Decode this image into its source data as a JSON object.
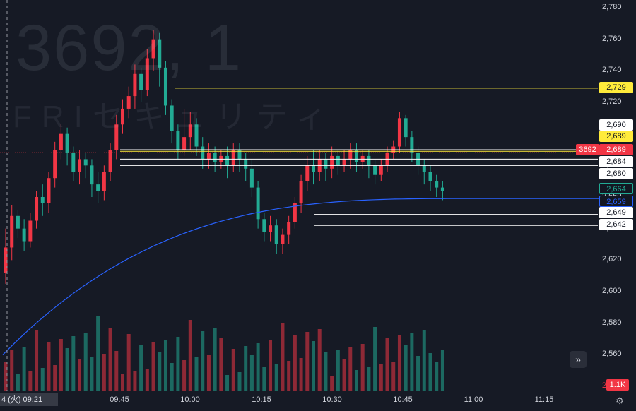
{
  "symbol_code": "3692",
  "symbol_suffix": "1",
  "company_name": "FRIセキュリティ",
  "colors": {
    "background": "#161a25",
    "up": "#f23645",
    "down": "#22ab94",
    "vwap": "#2962ff",
    "level_yellow": "#ffeb3b",
    "level_white": "#ffffff",
    "last_price": "#f23645",
    "grid": "#1f2330"
  },
  "price_axis": {
    "ticks": [
      "2,780",
      "2,760",
      "2,740",
      "2,720",
      "2,700",
      "2,680",
      "2,660",
      "2,640",
      "2,620",
      "2,600",
      "2,580",
      "2,560",
      "2,540"
    ],
    "tick_values": [
      2780,
      2760,
      2740,
      2720,
      2700,
      2680,
      2660,
      2640,
      2620,
      2600,
      2580,
      2560,
      2540
    ]
  },
  "price_labels": [
    {
      "text": "2,729",
      "value": 2729,
      "style": "yellow"
    },
    {
      "text": "2,690",
      "value": 2690,
      "style": "plain"
    },
    {
      "text": "2,689",
      "value": 2689,
      "style": "yellow"
    },
    {
      "text": "2,689",
      "value": 2689,
      "style": "red"
    },
    {
      "text": "2,684",
      "value": 2684,
      "style": "plain"
    },
    {
      "text": "2,680",
      "value": 2680,
      "style": "plain"
    },
    {
      "text": "2,664",
      "value": 2664,
      "style": "teal"
    },
    {
      "text": "2,659",
      "value": 2659,
      "style": "blue"
    },
    {
      "text": "2,649",
      "value": 2649,
      "style": "plain"
    },
    {
      "text": "2,642",
      "value": 2642,
      "style": "plain"
    }
  ],
  "symbol_badge": "3692",
  "volume_label": "1.1K",
  "time_axis": [
    "09:45",
    "10:00",
    "10:15",
    "10:30",
    "10:45",
    "11:00",
    "11:15"
  ],
  "cursor_label": "4 (火)   09:21",
  "horizontal_levels": [
    {
      "value": 2729,
      "color": "yellow",
      "extends": "from 10:00"
    },
    {
      "value": 2690,
      "color": "white"
    },
    {
      "value": 2689,
      "color": "yellow"
    },
    {
      "value": 2684,
      "color": "white"
    },
    {
      "value": 2680,
      "color": "white"
    },
    {
      "value": 2649,
      "color": "white"
    },
    {
      "value": 2642,
      "color": "white"
    }
  ],
  "icons": {
    "scroll_right": "double-chevron-right-icon",
    "settings": "gear-icon"
  },
  "chart_data": {
    "type": "candlestick",
    "title": "3692 · 1",
    "interval_minutes": 1,
    "x_start": "09:21",
    "ylim": [
      2536,
      2784
    ],
    "grid": false,
    "note_levels_drawn": [
      2729,
      2690,
      2689,
      2684,
      2680,
      2649,
      2642
    ],
    "last_price": 2664,
    "vwap_last": 2659,
    "candles": [
      [
        2612,
        2628,
        2605,
        2640
      ],
      [
        2628,
        2648,
        2620,
        2655
      ],
      [
        2648,
        2640,
        2634,
        2652
      ],
      [
        2640,
        2632,
        2626,
        2646
      ],
      [
        2632,
        2645,
        2628,
        2650
      ],
      [
        2645,
        2660,
        2640,
        2664
      ],
      [
        2660,
        2656,
        2648,
        2668
      ],
      [
        2656,
        2672,
        2650,
        2676
      ],
      [
        2672,
        2690,
        2666,
        2695
      ],
      [
        2690,
        2700,
        2684,
        2706
      ],
      [
        2700,
        2688,
        2680,
        2704
      ],
      [
        2688,
        2676,
        2670,
        2692
      ],
      [
        2676,
        2684,
        2668,
        2690
      ],
      [
        2684,
        2680,
        2672,
        2688
      ],
      [
        2680,
        2668,
        2660,
        2684
      ],
      [
        2668,
        2664,
        2656,
        2676
      ],
      [
        2664,
        2676,
        2658,
        2680
      ],
      [
        2676,
        2690,
        2670,
        2694
      ],
      [
        2690,
        2706,
        2684,
        2712
      ],
      [
        2706,
        2716,
        2700,
        2722
      ],
      [
        2716,
        2724,
        2710,
        2730
      ],
      [
        2724,
        2738,
        2716,
        2744
      ],
      [
        2738,
        2728,
        2720,
        2742
      ],
      [
        2728,
        2748,
        2724,
        2754
      ],
      [
        2748,
        2760,
        2740,
        2766
      ],
      [
        2760,
        2742,
        2730,
        2764
      ],
      [
        2742,
        2718,
        2712,
        2746
      ],
      [
        2718,
        2702,
        2694,
        2722
      ],
      [
        2702,
        2690,
        2684,
        2706
      ],
      [
        2690,
        2698,
        2686,
        2716
      ],
      [
        2698,
        2706,
        2690,
        2714
      ],
      [
        2706,
        2692,
        2686,
        2710
      ],
      [
        2692,
        2684,
        2678,
        2698
      ],
      [
        2684,
        2688,
        2678,
        2694
      ],
      [
        2688,
        2682,
        2676,
        2692
      ],
      [
        2682,
        2686,
        2678,
        2690
      ],
      [
        2686,
        2680,
        2672,
        2692
      ],
      [
        2680,
        2690,
        2676,
        2694
      ],
      [
        2690,
        2684,
        2676,
        2694
      ],
      [
        2684,
        2678,
        2670,
        2688
      ],
      [
        2678,
        2666,
        2660,
        2684
      ],
      [
        2666,
        2646,
        2640,
        2670
      ],
      [
        2646,
        2638,
        2632,
        2650
      ],
      [
        2638,
        2642,
        2632,
        2648
      ],
      [
        2642,
        2630,
        2624,
        2646
      ],
      [
        2630,
        2636,
        2624,
        2640
      ],
      [
        2636,
        2644,
        2630,
        2648
      ],
      [
        2644,
        2656,
        2640,
        2660
      ],
      [
        2656,
        2670,
        2650,
        2674
      ],
      [
        2670,
        2680,
        2664,
        2686
      ],
      [
        2680,
        2676,
        2668,
        2690
      ],
      [
        2676,
        2684,
        2670,
        2690
      ],
      [
        2684,
        2678,
        2670,
        2688
      ],
      [
        2678,
        2686,
        2672,
        2692
      ],
      [
        2686,
        2680,
        2674,
        2690
      ],
      [
        2680,
        2684,
        2676,
        2690
      ],
      [
        2684,
        2690,
        2678,
        2694
      ],
      [
        2690,
        2682,
        2676,
        2694
      ],
      [
        2682,
        2686,
        2678,
        2690
      ],
      [
        2686,
        2680,
        2672,
        2690
      ],
      [
        2680,
        2674,
        2668,
        2684
      ],
      [
        2674,
        2680,
        2670,
        2684
      ],
      [
        2680,
        2688,
        2676,
        2692
      ],
      [
        2688,
        2692,
        2684,
        2696
      ],
      [
        2692,
        2710,
        2688,
        2714
      ],
      [
        2710,
        2698,
        2692,
        2712
      ],
      [
        2698,
        2688,
        2682,
        2702
      ],
      [
        2688,
        2680,
        2674,
        2692
      ],
      [
        2680,
        2676,
        2668,
        2684
      ],
      [
        2676,
        2670,
        2664,
        2680
      ],
      [
        2670,
        2666,
        2660,
        2674
      ],
      [
        2666,
        2664,
        2658,
        2670
      ]
    ],
    "volume_max_label": "1.1K"
  }
}
